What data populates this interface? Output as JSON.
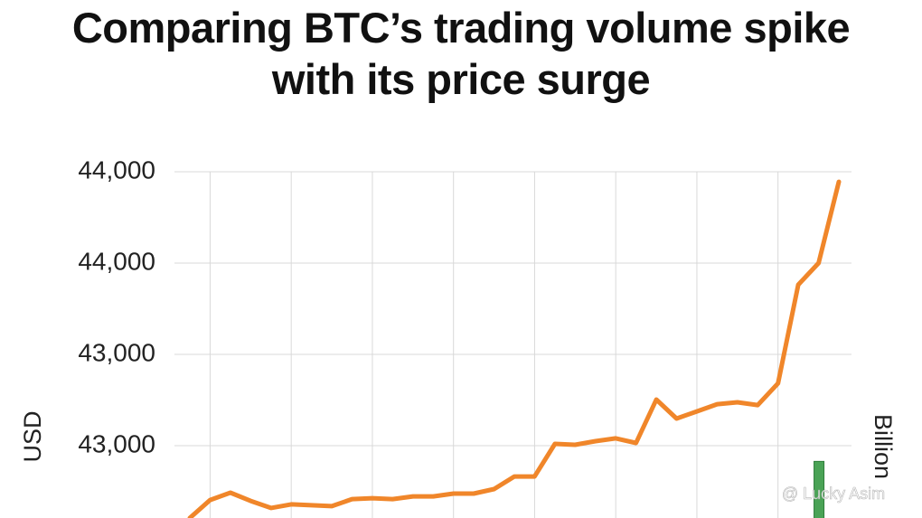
{
  "chart_data": {
    "type": "line",
    "title": "Comparing BTC’s trading volume spike with its price surge",
    "y_label": "USD",
    "y2_label": "Billion",
    "watermark": "@ Lucky Asim",
    "categories": [
      null,
      null,
      null,
      null,
      null,
      null,
      null,
      null,
      null,
      null,
      null,
      null,
      null,
      null,
      null,
      null,
      null,
      null,
      null,
      null,
      null,
      null,
      null,
      null,
      null,
      null,
      null,
      null,
      null,
      null,
      null,
      null,
      null
    ],
    "series": [
      {
        "color": "#f0862a",
        "values": [
          42683,
          42762,
          42794,
          42758,
          42727,
          42743,
          42739,
          42735,
          42766,
          42770,
          42766,
          42778,
          42778,
          42790,
          42790,
          42810,
          42865,
          42865,
          43008,
          43004,
          43020,
          43032,
          43012,
          43202,
          43119,
          43150,
          43182,
          43190,
          43178,
          43273,
          43705,
          43800,
          44156
        ]
      },
      {
        "color": "#4aa356",
        "axis": "y2",
        "values": [
          null,
          null,
          null,
          null,
          null,
          null,
          null,
          null,
          null,
          null,
          null,
          null,
          null,
          null,
          null,
          null,
          null,
          null,
          null,
          null,
          null,
          null,
          null,
          null,
          null,
          null,
          null,
          null,
          null,
          null,
          null,
          1.6,
          null
        ]
      }
    ],
    "ylim": [
      42680,
      44250
    ],
    "yticks": [
      {
        "value": 44200,
        "label": "44,000"
      },
      {
        "value": 43800,
        "label": "44,000"
      },
      {
        "value": 43400,
        "label": "43,000"
      },
      {
        "value": 43000,
        "label": "43,000"
      }
    ],
    "y2lim": [
      0,
      10
    ],
    "grid": true
  }
}
